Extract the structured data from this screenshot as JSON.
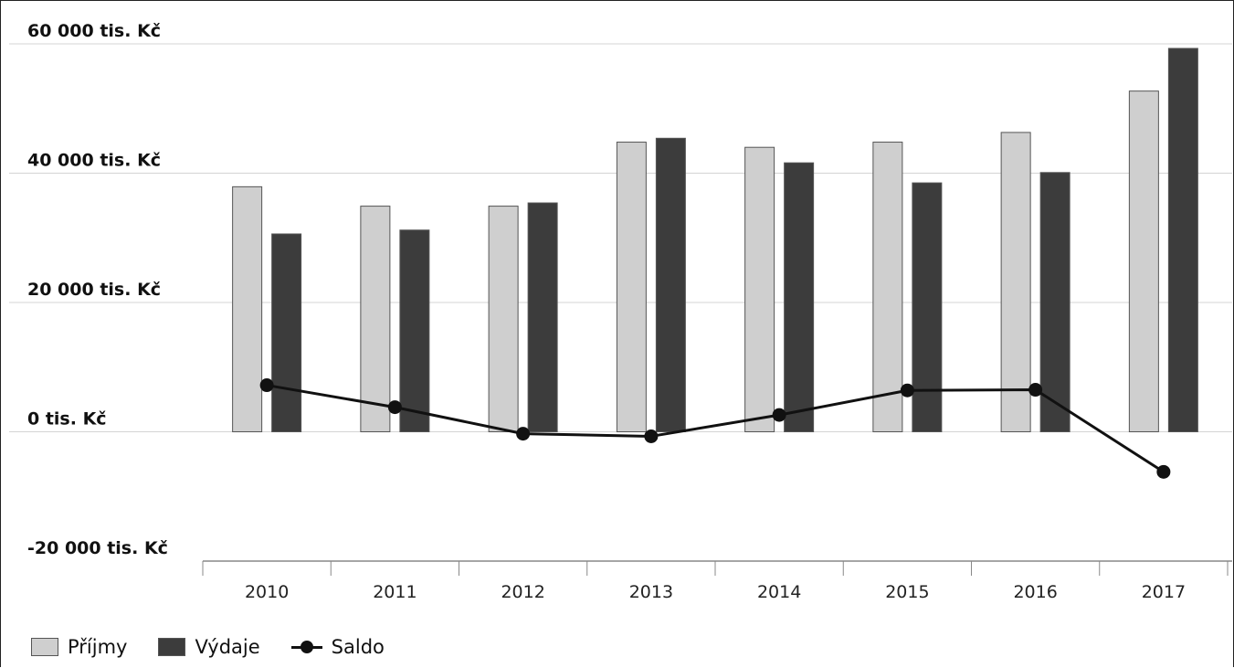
{
  "chart_data": {
    "type": "bar",
    "categories": [
      "2010",
      "2011",
      "2012",
      "2013",
      "2014",
      "2015",
      "2016",
      "2017"
    ],
    "series": [
      {
        "name": "Příjmy",
        "type": "bar",
        "color": "#cfcfcf",
        "values": [
          37900,
          34900,
          34900,
          44800,
          44000,
          44800,
          46300,
          52700
        ]
      },
      {
        "name": "Výdaje",
        "type": "bar",
        "color": "#3c3c3c",
        "values": [
          30600,
          31200,
          35400,
          45400,
          41600,
          38500,
          40100,
          59300
        ]
      },
      {
        "name": "Saldo",
        "type": "line",
        "color": "#111111",
        "values": [
          7200,
          3800,
          -300,
          -700,
          2600,
          6400,
          6500,
          -6200
        ]
      }
    ],
    "yticks": [
      "60 000 tis. Kč",
      "40 000 tis. Kč",
      "20 000 tis. Kč",
      "0 tis. Kč",
      "-20 000 tis. Kč"
    ],
    "ytick_values": [
      60000,
      40000,
      20000,
      0,
      -20000
    ],
    "ylim": [
      -20000,
      60000
    ],
    "grid": true,
    "legend_position": "bottom-left"
  },
  "legend": {
    "prijmy": "Příjmy",
    "vydaje": "Výdaje",
    "saldo": "Saldo"
  }
}
